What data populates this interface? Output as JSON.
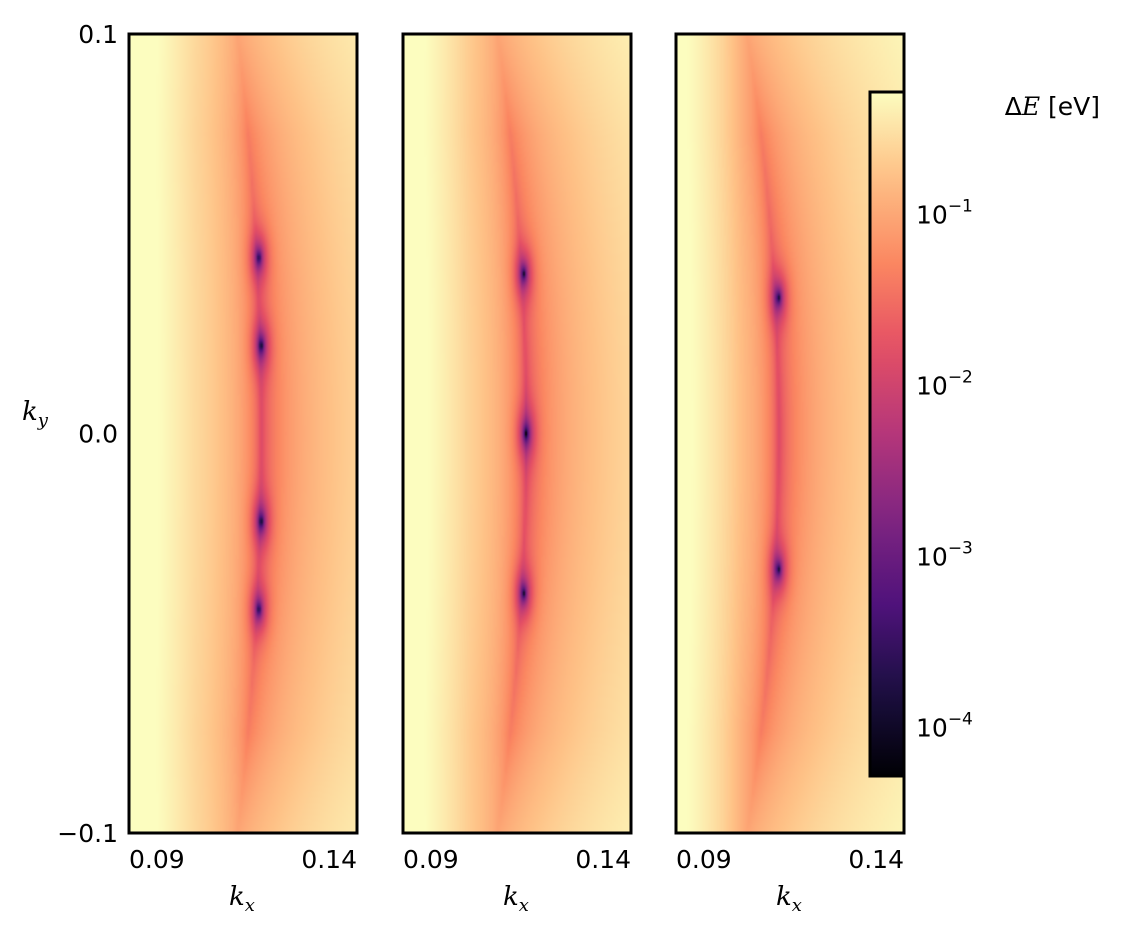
{
  "chart_data": {
    "type": "heatmap",
    "panel_count": 3,
    "x_axis": {
      "label": "k",
      "label_subscript": "x",
      "range": [
        0.09,
        0.14
      ],
      "tick_values": [
        0.09,
        0.14
      ],
      "tick_labels": [
        "0.09",
        "0.14"
      ]
    },
    "y_axis": {
      "label": "k",
      "label_subscript": "y",
      "range": [
        -0.1,
        0.1
      ],
      "tick_values": [
        0.1,
        0.0,
        -0.1
      ],
      "tick_labels": [
        "0.1",
        "0.0",
        "−0.1"
      ]
    },
    "colorbar": {
      "label": "ΔE [eV]",
      "scale": "log",
      "range": [
        5e-05,
        0.5
      ],
      "colormap": "magma",
      "ticks": [
        {
          "value": 0.1,
          "base": "10",
          "exponent": "−1"
        },
        {
          "value": 0.01,
          "base": "10",
          "exponent": "−2"
        },
        {
          "value": 0.001,
          "base": "10",
          "exponent": "−3"
        },
        {
          "value": 0.0001,
          "base": "10",
          "exponent": "−4"
        }
      ]
    },
    "panels": [
      {
        "nodal_curve": {
          "kx_center": 0.119,
          "ky_points": [
            0.088,
            0.03,
            -0.03,
            -0.088
          ]
        },
        "minima": [
          {
            "kx": 0.1185,
            "ky": 0.044
          },
          {
            "kx": 0.119,
            "ky": 0.022
          },
          {
            "kx": 0.119,
            "ky": -0.022
          },
          {
            "kx": 0.1185,
            "ky": -0.044
          }
        ]
      },
      {
        "nodal_curve": {
          "kx_center": 0.117,
          "ky_points": [
            0.08,
            0.02,
            -0.02,
            -0.08
          ]
        },
        "minima": [
          {
            "kx": 0.1165,
            "ky": 0.04
          },
          {
            "kx": 0.117,
            "ky": 0.0
          },
          {
            "kx": 0.1165,
            "ky": -0.04
          }
        ]
      },
      {
        "nodal_curve": {
          "kx_center": 0.1125,
          "ky_points": [
            0.076,
            0.015,
            -0.015,
            -0.076
          ]
        },
        "minima": [
          {
            "kx": 0.1125,
            "ky": 0.034
          },
          {
            "kx": 0.1125,
            "ky": -0.034
          }
        ]
      }
    ]
  }
}
